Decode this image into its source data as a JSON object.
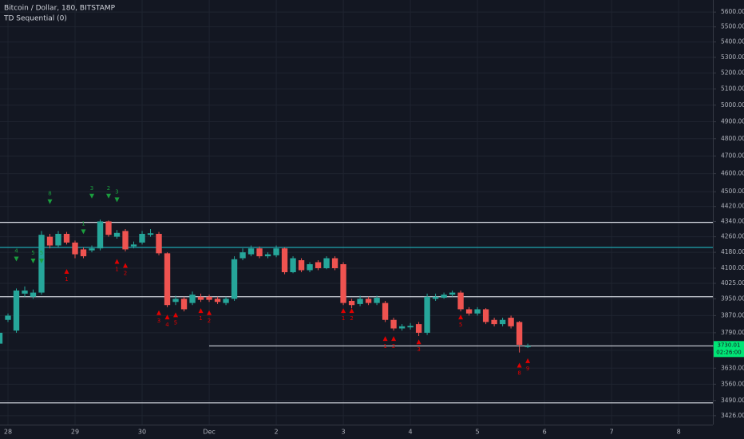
{
  "chart_data": {
    "type": "candlestick",
    "title": "Bitcoin / Dollar, 180, BITSTAMP",
    "subtitle": "TD Sequential (0)",
    "log_scale": true,
    "grid": true,
    "up_color": "#26a69a",
    "down_color": "#ef5350",
    "x": [
      -0.125,
      0,
      0.125,
      0.25,
      0.375,
      0.5,
      0.625,
      0.75,
      0.875,
      1,
      1.125,
      1.25,
      1.375,
      1.5,
      1.625,
      1.75,
      1.875,
      2,
      2.125,
      2.25,
      2.375,
      2.5,
      2.625,
      2.75,
      2.875,
      3,
      3.125,
      3.25,
      3.375,
      3.5,
      3.625,
      3.75,
      3.875,
      4,
      4.125,
      4.25,
      4.375,
      4.5,
      4.625,
      4.75,
      4.875,
      5,
      5.125,
      5.25,
      5.375,
      5.5,
      5.625,
      5.75,
      5.875,
      6,
      6.125,
      6.25,
      6.375,
      6.5,
      6.625,
      6.75,
      6.875,
      7,
      7.125,
      7.25,
      7.375,
      7.5,
      7.625,
      7.75
    ],
    "open": [
      3740,
      3850,
      3800,
      3975,
      3960,
      3980,
      4260,
      4215,
      4275,
      4230,
      4195,
      4190,
      4200,
      4340,
      4260,
      4290,
      4210,
      4230,
      4270,
      4275,
      4175,
      3935,
      3950,
      3930,
      3960,
      3960,
      3950,
      3930,
      3950,
      4150,
      4170,
      4200,
      4160,
      4165,
      4200,
      4080,
      4140,
      4090,
      4130,
      4100,
      4150,
      4120,
      3940,
      3925,
      3950,
      3930,
      3930,
      3850,
      3810,
      3815,
      3830,
      3790,
      3950,
      3955,
      3970,
      3980,
      3900,
      3880,
      3900,
      3850,
      3830,
      3860,
      3840,
      3725
    ],
    "high": [
      3800,
      3880,
      4000,
      4010,
      3995,
      4290,
      4275,
      4290,
      4285,
      4240,
      4205,
      4215,
      4350,
      4345,
      4295,
      4300,
      4235,
      4290,
      4300,
      4285,
      4180,
      3965,
      3960,
      3985,
      3975,
      3970,
      3960,
      3960,
      4160,
      4200,
      4215,
      4210,
      4180,
      4215,
      4205,
      4160,
      4150,
      4130,
      4140,
      4160,
      4160,
      4130,
      3950,
      3965,
      3960,
      3965,
      3940,
      3860,
      3830,
      3835,
      3840,
      3975,
      3975,
      3980,
      3990,
      3990,
      3910,
      3910,
      3905,
      3860,
      3860,
      3870,
      3845,
      3740
    ],
    "low": [
      3720,
      3840,
      3790,
      3960,
      3950,
      3970,
      4200,
      4205,
      4220,
      4150,
      4150,
      4180,
      4190,
      4260,
      4250,
      4185,
      4200,
      4220,
      4260,
      4165,
      3910,
      3920,
      3890,
      3920,
      3935,
      3935,
      3925,
      3920,
      3940,
      4140,
      4160,
      4150,
      4150,
      4155,
      4070,
      4075,
      4080,
      4080,
      4090,
      4095,
      4090,
      3920,
      3905,
      3915,
      3920,
      3920,
      3840,
      3800,
      3800,
      3805,
      3775,
      3780,
      3940,
      3950,
      3960,
      3890,
      3870,
      3870,
      3830,
      3820,
      3820,
      3810,
      3700,
      3720
    ],
    "close": [
      3790,
      3870,
      3990,
      3990,
      3980,
      4270,
      4215,
      4275,
      4230,
      4170,
      4160,
      4200,
      4340,
      4270,
      4280,
      4195,
      4220,
      4275,
      4278,
      4175,
      3920,
      3950,
      3900,
      3970,
      3945,
      3945,
      3935,
      3950,
      4145,
      4180,
      4200,
      4160,
      4170,
      4200,
      4080,
      4150,
      4090,
      4120,
      4100,
      4150,
      4100,
      3930,
      3920,
      3950,
      3930,
      3955,
      3850,
      3810,
      3820,
      3822,
      3790,
      3960,
      3960,
      3970,
      3980,
      3900,
      3880,
      3900,
      3840,
      3830,
      3850,
      3820,
      3735,
      3730.01
    ],
    "xlim": [
      -0.119,
      10.51
    ],
    "ylim": [
      3389,
      5683
    ],
    "xticks": [
      {
        "value": 0,
        "label": "28"
      },
      {
        "value": 1,
        "label": "29"
      },
      {
        "value": 2,
        "label": "30"
      },
      {
        "value": 3,
        "label": "Dec"
      },
      {
        "value": 4,
        "label": "2"
      },
      {
        "value": 5,
        "label": "3"
      },
      {
        "value": 6,
        "label": "4"
      },
      {
        "value": 7,
        "label": "5"
      },
      {
        "value": 8,
        "label": "6"
      },
      {
        "value": 9,
        "label": "7"
      },
      {
        "value": 10,
        "label": "8"
      }
    ],
    "yticks": [
      {
        "value": 5600,
        "label": "5600.00"
      },
      {
        "value": 5500,
        "label": "5500.00"
      },
      {
        "value": 5400,
        "label": "5400.00"
      },
      {
        "value": 5300,
        "label": "5300.00"
      },
      {
        "value": 5200,
        "label": "5200.00"
      },
      {
        "value": 5100,
        "label": "5100.00"
      },
      {
        "value": 5000,
        "label": "5000.00"
      },
      {
        "value": 4900,
        "label": "4900.00"
      },
      {
        "value": 4800,
        "label": "4800.00"
      },
      {
        "value": 4700,
        "label": "4700.00"
      },
      {
        "value": 4600,
        "label": "4600.00"
      },
      {
        "value": 4500,
        "label": "4500.00"
      },
      {
        "value": 4420,
        "label": "4420.00"
      },
      {
        "value": 4340,
        "label": "4340.00"
      },
      {
        "value": 4260,
        "label": "4260.00"
      },
      {
        "value": 4180,
        "label": "4180.00"
      },
      {
        "value": 4100,
        "label": "4100.00"
      },
      {
        "value": 4025,
        "label": "4025.00"
      },
      {
        "value": 3950,
        "label": "3950.00"
      },
      {
        "value": 3870,
        "label": "3870.00"
      },
      {
        "value": 3790,
        "label": "3790.00"
      },
      {
        "value": 3710,
        "label": "3710.00"
      },
      {
        "value": 3630,
        "label": "3630.00"
      },
      {
        "value": 3560,
        "label": "3560.00"
      },
      {
        "value": 3490,
        "label": "3490.00"
      },
      {
        "value": 3426,
        "label": "3426.00"
      }
    ],
    "levels": [
      {
        "value": 4335,
        "color": "#d1d4dc"
      },
      {
        "value": 4205,
        "color": "#1fa5b0"
      },
      {
        "value": 3960,
        "color": "#d1d4dc"
      },
      {
        "value": 3730,
        "from": 3,
        "color": "#d1d4dc"
      },
      {
        "value": 3480,
        "color": "#d1d4dc"
      }
    ],
    "last_price": 3730.01,
    "countdown": "02:26:00",
    "last_color": "#00e676",
    "annotations": [
      {
        "x": 0.625,
        "y": 4450,
        "label": "8",
        "color": "#1b9e3e"
      },
      {
        "x": 1.125,
        "y": 4290,
        "label": "1",
        "color": "#1b9e3e"
      },
      {
        "x": 1.25,
        "y": 4480,
        "label": "3",
        "color": "#1b9e3e"
      },
      {
        "x": 1.5,
        "y": 4480,
        "label": "2",
        "color": "#1b9e3e"
      },
      {
        "x": 1.625,
        "y": 4460,
        "label": "3",
        "color": "#1b9e3e"
      },
      {
        "x": 0.125,
        "y": 4150,
        "label": "4",
        "color": "#1b9e3e"
      },
      {
        "x": 0.375,
        "y": 4140,
        "label": "5",
        "color": "#1b9e3e"
      },
      {
        "x": 0.5,
        "y": 4140,
        "label": "5",
        "color": "#1b9e3e"
      },
      {
        "x": 0.875,
        "y": 4080,
        "label": "1",
        "color": "#e00000"
      },
      {
        "x": 1.625,
        "y": 4130,
        "label": "1",
        "color": "#e00000"
      },
      {
        "x": 1.75,
        "y": 4110,
        "label": "2",
        "color": "#e00000"
      },
      {
        "x": 2.25,
        "y": 3880,
        "label": "3",
        "color": "#e00000"
      },
      {
        "x": 2.375,
        "y": 3860,
        "label": "4",
        "color": "#e00000"
      },
      {
        "x": 2.5,
        "y": 3870,
        "label": "5",
        "color": "#e00000"
      },
      {
        "x": 2.875,
        "y": 3890,
        "label": "1",
        "color": "#e00000"
      },
      {
        "x": 3,
        "y": 3880,
        "label": "2",
        "color": "#e00000"
      },
      {
        "x": 5,
        "y": 3890,
        "label": "1",
        "color": "#e00000"
      },
      {
        "x": 5.125,
        "y": 3890,
        "label": "2",
        "color": "#e00000"
      },
      {
        "x": 5.625,
        "y": 3760,
        "label": "1",
        "color": "#e00000"
      },
      {
        "x": 5.75,
        "y": 3760,
        "label": "2",
        "color": "#e00000"
      },
      {
        "x": 6.125,
        "y": 3745,
        "label": "3",
        "color": "#e00000"
      },
      {
        "x": 6.75,
        "y": 3860,
        "label": "5",
        "color": "#e00000"
      },
      {
        "x": 7.625,
        "y": 3640,
        "label": "8",
        "color": "#e00000"
      },
      {
        "x": 7.75,
        "y": 3660,
        "label": "9",
        "color": "#e00000"
      }
    ]
  }
}
